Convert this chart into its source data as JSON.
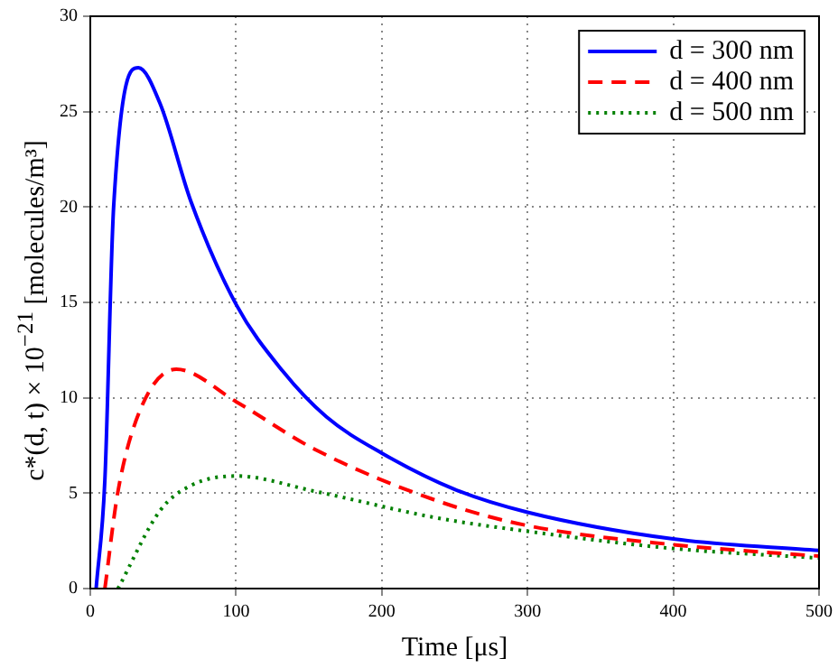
{
  "chart_data": {
    "type": "line",
    "xlabel": "Time [μs]",
    "ylabel": "c*(d, t) × 10$^{−21}$ [molecules/m³]",
    "xlim": [
      0,
      500
    ],
    "xticks": [
      0,
      100,
      200,
      300,
      400,
      500
    ],
    "ylim": [
      0,
      30
    ],
    "yticks": [
      0,
      5,
      10,
      15,
      20,
      25,
      30
    ],
    "grid": true,
    "legend": "top right",
    "marker": "none",
    "series": [
      {
        "name": "d = 300 nm",
        "color": "#0000ff",
        "line_style": "solid",
        "x": [
          4,
          10,
          16,
          33,
          48,
          69,
          100,
          132,
          162,
          200,
          250,
          300,
          400,
          500
        ],
        "values": [
          0,
          5.7,
          20,
          27.3,
          25.4,
          20.3,
          14.9,
          11.4,
          9,
          7.1,
          5.2,
          4.0,
          2.6,
          2.0
        ]
      },
      {
        "name": "d = 400 nm",
        "color": "#ff0000",
        "line_style": "dashed",
        "x": [
          10,
          19,
          35,
          59,
          100,
          154,
          238,
          300,
          400,
          500
        ],
        "values": [
          0,
          5.1,
          9.5,
          11.5,
          9.8,
          7.3,
          4.6,
          3.3,
          2.3,
          1.7
        ]
      },
      {
        "name": "d = 500 nm",
        "color": "#008000",
        "line_style": "dotted",
        "x": [
          19,
          48,
          69,
          100,
          154,
          238,
          300,
          400,
          500
        ],
        "values": [
          0,
          4.1,
          5.4,
          5.9,
          5.1,
          3.7,
          3.0,
          2.1,
          1.6
        ]
      }
    ]
  }
}
